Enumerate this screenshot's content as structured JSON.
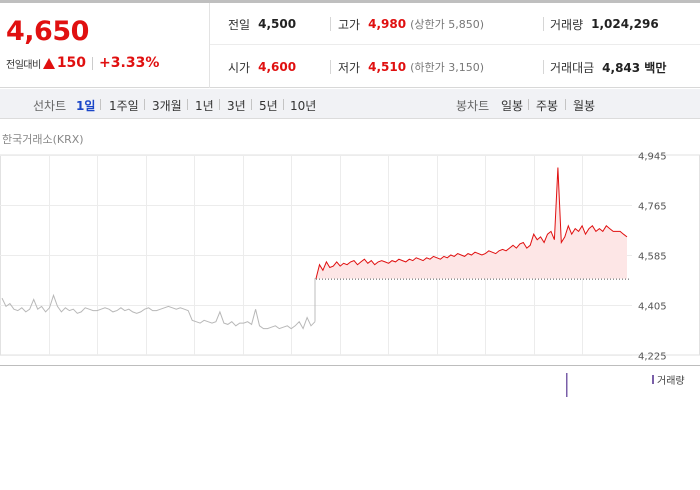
{
  "summary": {
    "price": "4,650",
    "change_label": "전일대비",
    "change_value": "150",
    "change_pct": "+3.33%",
    "prev_close": {
      "label": "전일",
      "value": "4,500"
    },
    "high": {
      "label": "고가",
      "value": "4,980",
      "sub": "(상한가 5,850)"
    },
    "volume": {
      "label": "거래량",
      "value": "1,024,296"
    },
    "open": {
      "label": "시가",
      "value": "4,600"
    },
    "low": {
      "label": "저가",
      "value": "4,510",
      "sub": "(하한가 3,150)"
    },
    "trade_value": {
      "label": "거래대금",
      "value": "4,843 백만"
    }
  },
  "period_bar": {
    "line_label": "선차트",
    "line_periods": [
      "1일",
      "1주일",
      "3개월",
      "1년",
      "3년",
      "5년",
      "10년"
    ],
    "line_active": "1일",
    "candle_label": "봉차트",
    "candle_periods": [
      "일봉",
      "주봉",
      "월봉"
    ]
  },
  "source": "한국거래소(KRX)",
  "volume_legend": "거래량",
  "colors": {
    "up": "#e01010",
    "down_prev": "#b8b8b8",
    "active_tab": "#1a46c8",
    "volume_bar": "#7a5fa8"
  },
  "chart_data": {
    "type": "line",
    "yticks": [
      4945,
      4765,
      4585,
      4405,
      4225
    ],
    "ytick_labels": [
      "4,945",
      "4,765",
      "4,585",
      "4,405",
      "4,225"
    ],
    "ylim": [
      4225,
      4945
    ],
    "reference_line": 4500,
    "series": [
      {
        "segment": "previous-day",
        "values": [
          4430,
          4400,
          4410,
          4390,
          4385,
          4395,
          4380,
          4390,
          4425,
          4390,
          4400,
          4380,
          4395,
          4440,
          4400,
          4380,
          4395,
          4385,
          4390,
          4375,
          4380,
          4395,
          4390,
          4385,
          4385,
          4390,
          4395,
          4390,
          4380,
          4385,
          4395,
          4385,
          4390,
          4380,
          4375,
          4380,
          4390,
          4395,
          4385,
          4385,
          4390,
          4395,
          4400,
          4395,
          4390,
          4395,
          4390,
          4385,
          4350,
          4345,
          4340,
          4350,
          4345,
          4340,
          4345,
          4380,
          4340,
          4335,
          4345,
          4330,
          4340,
          4340,
          4345,
          4335,
          4390,
          4330,
          4320,
          4320,
          4325,
          4330,
          4320,
          4325,
          4330,
          4320,
          4330,
          4345,
          4320,
          4360,
          4330,
          4345
        ]
      },
      {
        "segment": "today",
        "values": [
          4500,
          4550,
          4530,
          4560,
          4540,
          4545,
          4560,
          4545,
          4555,
          4550,
          4560,
          4565,
          4550,
          4560,
          4570,
          4555,
          4565,
          4550,
          4560,
          4565,
          4560,
          4555,
          4565,
          4560,
          4570,
          4565,
          4560,
          4570,
          4565,
          4575,
          4570,
          4565,
          4575,
          4570,
          4580,
          4575,
          4570,
          4580,
          4575,
          4585,
          4580,
          4590,
          4585,
          4580,
          4590,
          4585,
          4595,
          4590,
          4585,
          4590,
          4600,
          4595,
          4590,
          4600,
          4605,
          4600,
          4610,
          4620,
          4610,
          4625,
          4630,
          4610,
          4620,
          4660,
          4640,
          4650,
          4630,
          4660,
          4670,
          4640,
          4900,
          4630,
          4650,
          4690,
          4660,
          4680,
          4670,
          4690,
          4660,
          4680,
          4690,
          4670,
          4680,
          4670,
          4690,
          4680,
          4670,
          4670,
          4670,
          4660,
          4650
        ]
      }
    ],
    "volume": [
      1
    ]
  }
}
